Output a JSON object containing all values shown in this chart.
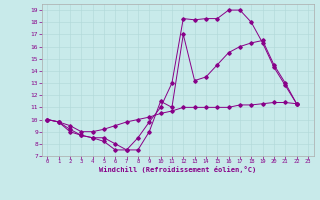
{
  "xlabel": "Windchill (Refroidissement éolien,°C)",
  "bg_color": "#c8eaea",
  "line_color": "#880088",
  "xlim": [
    -0.5,
    23.5
  ],
  "ylim": [
    7,
    19.5
  ],
  "xticks": [
    0,
    1,
    2,
    3,
    4,
    5,
    6,
    7,
    8,
    9,
    10,
    11,
    12,
    13,
    14,
    15,
    16,
    17,
    18,
    19,
    20,
    21,
    22,
    23
  ],
  "yticks": [
    7,
    8,
    9,
    10,
    11,
    12,
    13,
    14,
    15,
    16,
    17,
    18,
    19
  ],
  "lines": [
    {
      "x": [
        0,
        1,
        2,
        3,
        4,
        5,
        6,
        7,
        8,
        9,
        10,
        11,
        12,
        13,
        14,
        15,
        16,
        17,
        18,
        19,
        20,
        21,
        22
      ],
      "y": [
        10,
        9.8,
        9.0,
        8.7,
        8.5,
        8.2,
        7.5,
        7.5,
        8.5,
        9.8,
        11.0,
        13.0,
        18.3,
        18.2,
        18.3,
        18.3,
        19.0,
        19.0,
        18.0,
        16.3,
        14.3,
        12.8,
        11.3
      ]
    },
    {
      "x": [
        0,
        1,
        2,
        3,
        4,
        5,
        6,
        7,
        8,
        9,
        10,
        11,
        12,
        13,
        14,
        15,
        16,
        17,
        18,
        19,
        20,
        21,
        22
      ],
      "y": [
        10,
        9.8,
        9.2,
        8.7,
        8.5,
        8.5,
        8.0,
        7.5,
        7.5,
        9.0,
        11.5,
        11.0,
        17.0,
        13.2,
        13.5,
        14.5,
        15.5,
        16.0,
        16.3,
        16.5,
        14.5,
        13.0,
        11.3
      ]
    },
    {
      "x": [
        0,
        1,
        2,
        3,
        4,
        5,
        6,
        7,
        8,
        9,
        10,
        11,
        12,
        13,
        14,
        15,
        16,
        17,
        18,
        19,
        20,
        21,
        22
      ],
      "y": [
        10,
        9.8,
        9.5,
        9.0,
        9.0,
        9.2,
        9.5,
        9.8,
        10.0,
        10.2,
        10.5,
        10.7,
        11.0,
        11.0,
        11.0,
        11.0,
        11.0,
        11.2,
        11.2,
        11.3,
        11.4,
        11.4,
        11.3
      ]
    }
  ]
}
